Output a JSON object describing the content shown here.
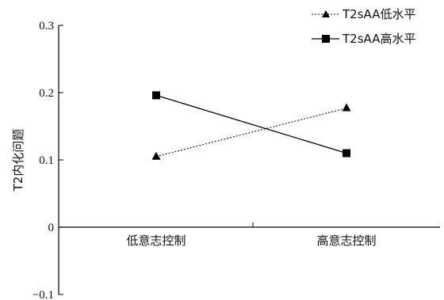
{
  "chart_data": {
    "type": "line",
    "title": "",
    "xlabel": "",
    "ylabel": "T2内化问题",
    "categories": [
      "低意志控制",
      "高意志控制"
    ],
    "ylim": [
      -0.1,
      0.3
    ],
    "yticks": [
      -0.1,
      0,
      0.1,
      0.2,
      0.3
    ],
    "ytick_labels": [
      "−0.1",
      "0",
      "0.1",
      "0.2",
      "0.3"
    ],
    "grid": false,
    "legend_position": "top-right",
    "series": [
      {
        "name": "T2sAA低水平",
        "values": [
          0.105,
          0.177
        ],
        "marker": "triangle",
        "line_style": "dotted",
        "color": "#000000"
      },
      {
        "name": "T2sAA高水平",
        "values": [
          0.196,
          0.11
        ],
        "marker": "square",
        "line_style": "solid",
        "color": "#000000"
      }
    ]
  }
}
